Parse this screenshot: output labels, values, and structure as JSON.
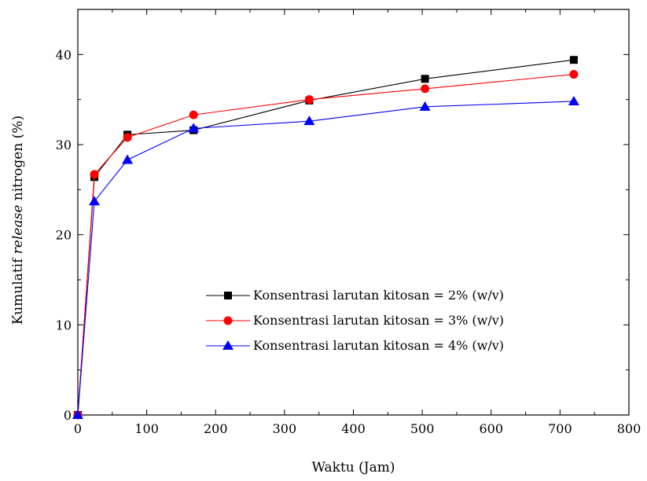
{
  "chart_data": {
    "type": "line",
    "xlabel": "Waktu (Jam)",
    "ylabel_prefix": "Kumulatif ",
    "ylabel_italic": "release",
    "ylabel_suffix": " nitrogen (%)",
    "xlim": [
      0,
      800
    ],
    "ylim": [
      0,
      45
    ],
    "xticks": [
      0,
      100,
      200,
      300,
      400,
      500,
      600,
      700,
      800
    ],
    "yticks": [
      0,
      10,
      20,
      30,
      40
    ],
    "grid": false,
    "legend_position": "bottom-right",
    "series": [
      {
        "name": "Konsentrasi larutan kitosan = 2% (w/v)",
        "color": "#000000",
        "marker": "square",
        "x": [
          0,
          24,
          72,
          168,
          336,
          504,
          720
        ],
        "y": [
          0,
          26.4,
          31.1,
          31.6,
          34.9,
          37.3,
          39.4
        ]
      },
      {
        "name": "Konsentrasi larutan kitosan = 3% (w/v)",
        "color": "#ff0000",
        "marker": "circle",
        "x": [
          0,
          24,
          72,
          168,
          336,
          504,
          720
        ],
        "y": [
          0,
          26.7,
          30.8,
          33.3,
          35.0,
          36.2,
          37.8
        ]
      },
      {
        "name": "Konsentrasi larutan kitosan = 4% (w/v)",
        "color": "#0000ff",
        "marker": "triangle",
        "x": [
          0,
          24,
          72,
          168,
          336,
          504,
          720
        ],
        "y": [
          0,
          23.7,
          28.3,
          31.8,
          32.6,
          34.2,
          34.8
        ]
      }
    ]
  }
}
